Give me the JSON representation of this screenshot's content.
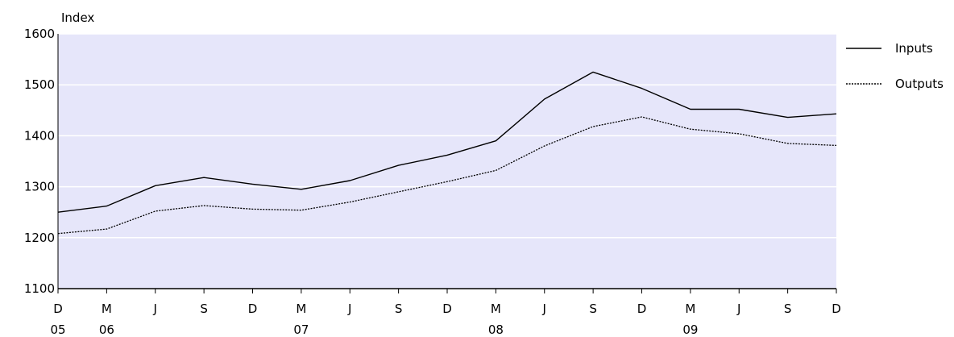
{
  "chart_data": {
    "type": "line",
    "ylabel": "Index",
    "ylim": [
      1100,
      1600
    ],
    "yticks": [
      1100,
      1200,
      1300,
      1400,
      1500,
      1600
    ],
    "grid": true,
    "legend_position": "right",
    "background_color": "#e6e6fa",
    "x_tick_labels": [
      "D",
      "M",
      "J",
      "S",
      "D",
      "M",
      "J",
      "S",
      "D",
      "M",
      "J",
      "S",
      "D",
      "M",
      "J",
      "S",
      "D"
    ],
    "x_year_labels": [
      {
        "index": 0,
        "label": "05"
      },
      {
        "index": 1,
        "label": "06"
      },
      {
        "index": 5,
        "label": "07"
      },
      {
        "index": 9,
        "label": "08"
      },
      {
        "index": 13,
        "label": "09"
      }
    ],
    "x": [
      "Dec 2005",
      "Mar 2006",
      "Jun 2006",
      "Sep 2006",
      "Dec 2006",
      "Mar 2007",
      "Jun 2007",
      "Sep 2007",
      "Dec 2007",
      "Mar 2008",
      "Jun 2008",
      "Sep 2008",
      "Dec 2008",
      "Mar 2009",
      "Jun 2009",
      "Sep 2009",
      "Dec 2009"
    ],
    "series": [
      {
        "name": "Inputs",
        "style": "solid",
        "values": [
          1250,
          1262,
          1302,
          1318,
          1305,
          1295,
          1312,
          1342,
          1362,
          1390,
          1472,
          1525,
          1493,
          1452,
          1452,
          1436,
          1443
        ]
      },
      {
        "name": "Outputs",
        "style": "dotted",
        "values": [
          1208,
          1217,
          1252,
          1263,
          1256,
          1254,
          1270,
          1290,
          1310,
          1332,
          1380,
          1418,
          1437,
          1413,
          1404,
          1385,
          1381
        ]
      }
    ]
  }
}
